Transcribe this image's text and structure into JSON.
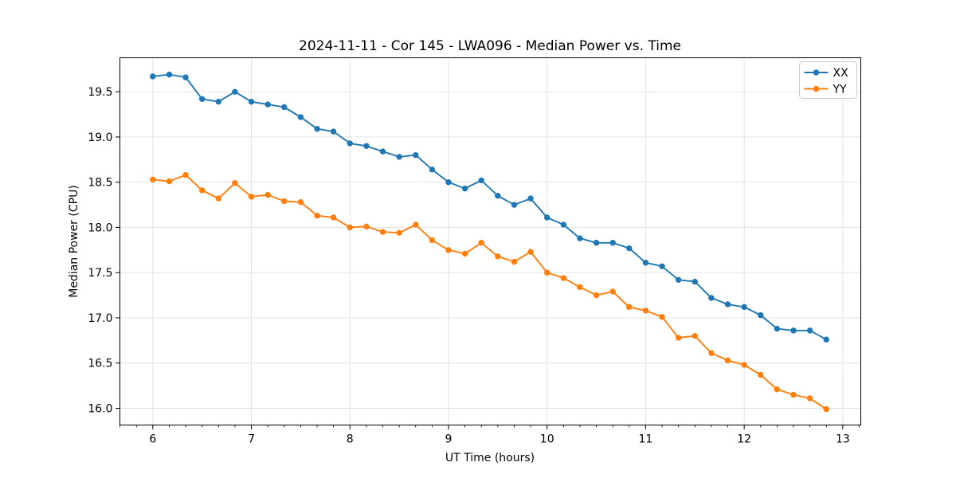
{
  "figure": {
    "title": "2024-11-11 - Cor 145 - LWA096 - Median Power vs. Time",
    "xlabel": "UT Time (hours)",
    "ylabel": "Median Power (CPU)"
  },
  "legend": {
    "entries": [
      {
        "label": "XX",
        "color": "#1f77b4"
      },
      {
        "label": "YY",
        "color": "#ff7f0e"
      }
    ],
    "position": "upper right"
  },
  "colors": {
    "series_xx": "#1f77b4",
    "series_yy": "#ff7f0e",
    "grid": "#e0e0e0",
    "spine": "#000000",
    "legend_border": "#cccccc"
  },
  "chart_data": {
    "type": "line",
    "title": "2024-11-11 - Cor 145 - LWA096 - Median Power vs. Time",
    "xlabel": "UT Time (hours)",
    "ylabel": "Median Power (CPU)",
    "grid": true,
    "legend_position": "upper right",
    "xlim": [
      5.666,
      13.183
    ],
    "ylim": [
      15.815,
      19.876
    ],
    "xticks": [
      6,
      7,
      8,
      9,
      10,
      11,
      12,
      13
    ],
    "yticks": [
      16.0,
      16.5,
      17.0,
      17.5,
      18.0,
      18.5,
      19.0,
      19.5
    ],
    "minor_xtick_step": 0.16667,
    "x": [
      6.0,
      6.167,
      6.333,
      6.5,
      6.667,
      6.833,
      7.0,
      7.167,
      7.333,
      7.5,
      7.667,
      7.833,
      8.0,
      8.167,
      8.333,
      8.5,
      8.667,
      8.833,
      9.0,
      9.167,
      9.333,
      9.5,
      9.667,
      9.833,
      10.0,
      10.167,
      10.333,
      10.5,
      10.667,
      10.833,
      11.0,
      11.167,
      11.333,
      11.5,
      11.667,
      11.833,
      12.0,
      12.167,
      12.333,
      12.5,
      12.667,
      12.833
    ],
    "series": [
      {
        "name": "XX",
        "color": "#1f77b4",
        "marker": "circle",
        "values": [
          19.67,
          19.69,
          19.66,
          19.42,
          19.39,
          19.5,
          19.39,
          19.36,
          19.33,
          19.22,
          19.09,
          19.06,
          18.93,
          18.9,
          18.84,
          18.78,
          18.8,
          18.64,
          18.5,
          18.43,
          18.52,
          18.35,
          18.25,
          18.32,
          18.11,
          18.03,
          17.88,
          17.83,
          17.83,
          17.77,
          17.61,
          17.57,
          17.42,
          17.4,
          17.22,
          17.15,
          17.12,
          17.03,
          16.88,
          16.86,
          16.86,
          16.76
        ]
      },
      {
        "name": "YY",
        "color": "#ff7f0e",
        "marker": "circle",
        "values": [
          18.53,
          18.51,
          18.58,
          18.41,
          18.32,
          18.49,
          18.34,
          18.36,
          18.29,
          18.28,
          18.13,
          18.11,
          18.0,
          18.01,
          17.95,
          17.94,
          18.03,
          17.86,
          17.75,
          17.71,
          17.83,
          17.68,
          17.62,
          17.73,
          17.5,
          17.44,
          17.34,
          17.25,
          17.29,
          17.12,
          17.08,
          17.01,
          16.78,
          16.8,
          16.61,
          16.53,
          16.48,
          16.37,
          16.21,
          16.15,
          16.11,
          15.99
        ]
      }
    ]
  }
}
